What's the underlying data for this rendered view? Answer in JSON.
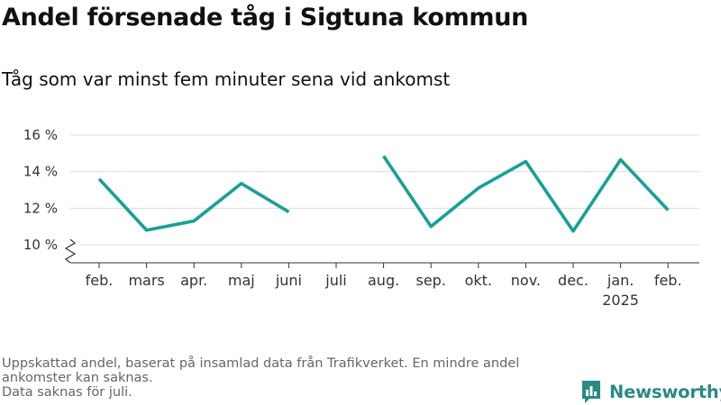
{
  "title": "Andel försenade tåg i Sigtuna kommun",
  "subtitle": "Tåg som var minst fem minuter sena vid ankomst",
  "footnotes": [
    "Uppskattad andel, baserat på insamlad data från Trafikverket. En mindre andel ankomster kan saknas.",
    "Data saknas för juli."
  ],
  "logo": {
    "text": "Newsworthy",
    "icon": "bar-chart-speech-icon"
  },
  "colors": {
    "line": "#16a196",
    "grid": "#dddddd",
    "axis": "#333333",
    "brand": "#2a8a86"
  },
  "chart_data": {
    "type": "line",
    "categories": [
      "feb.",
      "mars",
      "apr.",
      "maj",
      "juni",
      "juli",
      "aug.",
      "sep.",
      "okt.",
      "nov.",
      "dec.",
      "jan.",
      "feb."
    ],
    "category_sublabels": [
      "",
      "",
      "",
      "",
      "",
      "",
      "",
      "",
      "",
      "",
      "",
      "2025",
      ""
    ],
    "series": [
      {
        "values": [
          13.6,
          10.8,
          11.3,
          13.35,
          11.8,
          null,
          14.85,
          11.0,
          13.1,
          14.55,
          10.75,
          14.65,
          11.9
        ]
      }
    ],
    "ylim": [
      10,
      16
    ],
    "yticks": [
      10,
      12,
      14,
      16
    ],
    "ytick_labels": [
      "10 %",
      "12 %",
      "14 %",
      "16 %"
    ],
    "y_axis_break": true,
    "grid": true,
    "xlabel": "",
    "ylabel": ""
  }
}
